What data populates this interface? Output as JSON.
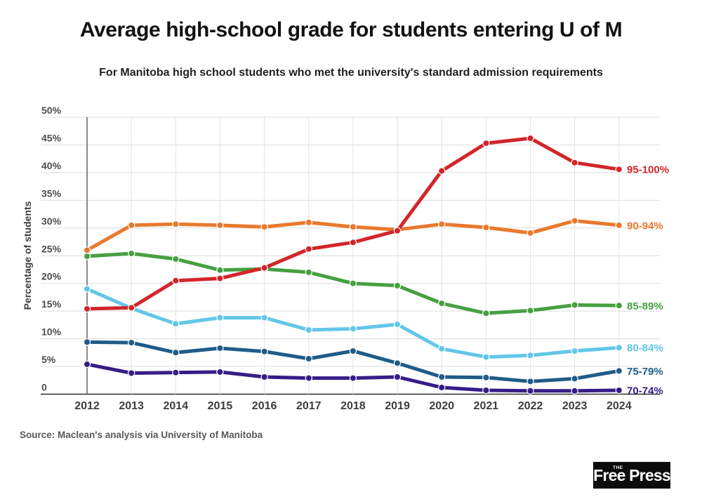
{
  "header": {
    "title": "Average high-school grade for students entering U of M",
    "subtitle": "For Manitoba high school students who met the university's standard admission requirements"
  },
  "chart_data": {
    "type": "line",
    "title": "Average high-school grade for students entering U of M",
    "subtitle": "For Manitoba high school students who met the university's standard admission requirements",
    "xlabel": "",
    "ylabel": "Percentage of students",
    "x": [
      2012,
      2013,
      2014,
      2015,
      2016,
      2017,
      2018,
      2019,
      2020,
      2021,
      2022,
      2023,
      2024
    ],
    "ylim": [
      0,
      50
    ],
    "y_tick_step": 5,
    "y_tick_labels": [
      "0",
      "5%",
      "10%",
      "15%",
      "20%",
      "25%",
      "30%",
      "35%",
      "40%",
      "45%",
      "50%"
    ],
    "grid": true,
    "legend_position": "right-at-line-end",
    "series": [
      {
        "name": "95-100%",
        "color": "#d2252a",
        "values": [
          15.4,
          15.6,
          20.5,
          20.9,
          22.8,
          26.2,
          27.4,
          29.5,
          40.3,
          45.3,
          46.2,
          41.8,
          40.6
        ]
      },
      {
        "name": "90-94%",
        "color": "#e9782d",
        "values": [
          26.0,
          30.5,
          30.7,
          30.5,
          30.2,
          31.0,
          30.2,
          29.7,
          30.7,
          30.1,
          29.1,
          31.3,
          30.5
        ]
      },
      {
        "name": "85-89%",
        "color": "#46a040",
        "values": [
          24.9,
          25.4,
          24.4,
          22.4,
          22.6,
          22.0,
          20.0,
          19.6,
          16.4,
          14.6,
          15.1,
          16.1,
          16.0
        ]
      },
      {
        "name": "80-84%",
        "color": "#62c6e8",
        "values": [
          19.0,
          15.5,
          12.7,
          13.8,
          13.8,
          11.6,
          11.8,
          12.6,
          8.2,
          6.7,
          7.0,
          7.8,
          8.4
        ]
      },
      {
        "name": "75-79%",
        "color": "#1f5c87",
        "values": [
          9.4,
          9.3,
          7.5,
          8.3,
          7.7,
          6.4,
          7.8,
          5.6,
          3.1,
          3.0,
          2.3,
          2.8,
          4.2
        ]
      },
      {
        "name": "70-74%",
        "color": "#371c87",
        "values": [
          5.4,
          3.8,
          3.9,
          4.0,
          3.1,
          2.9,
          2.9,
          3.1,
          1.2,
          0.7,
          0.6,
          0.6,
          0.7
        ]
      }
    ]
  },
  "footer": {
    "source": "Source: Maclean's analysis via University of Manitoba",
    "logo": {
      "prefix": "THE",
      "name": "Free Press",
      "background": "#0c0c0c"
    }
  }
}
